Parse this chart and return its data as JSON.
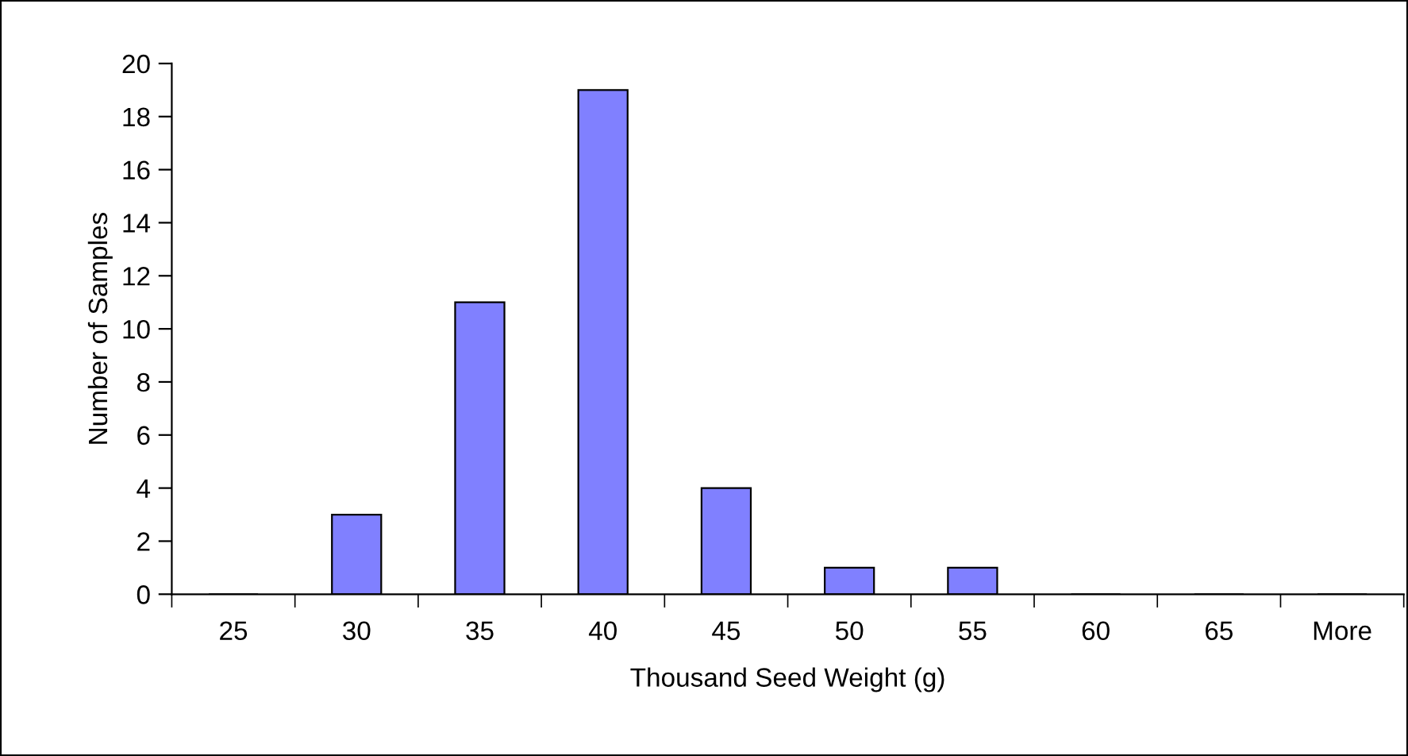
{
  "chart_data": {
    "type": "bar",
    "xlabel": "Thousand Seed Weight (g)",
    "ylabel": "Number of Samples",
    "categories": [
      "25",
      "30",
      "35",
      "40",
      "45",
      "50",
      "55",
      "60",
      "65",
      "More"
    ],
    "values": [
      0,
      3,
      11,
      19,
      4,
      1,
      1,
      0,
      0,
      0
    ],
    "color": "#8080ff",
    "ylim": [
      0,
      20
    ],
    "yticks": [
      0,
      2,
      4,
      6,
      8,
      10,
      12,
      14,
      16,
      18,
      20
    ],
    "grid": false,
    "legend": false
  }
}
